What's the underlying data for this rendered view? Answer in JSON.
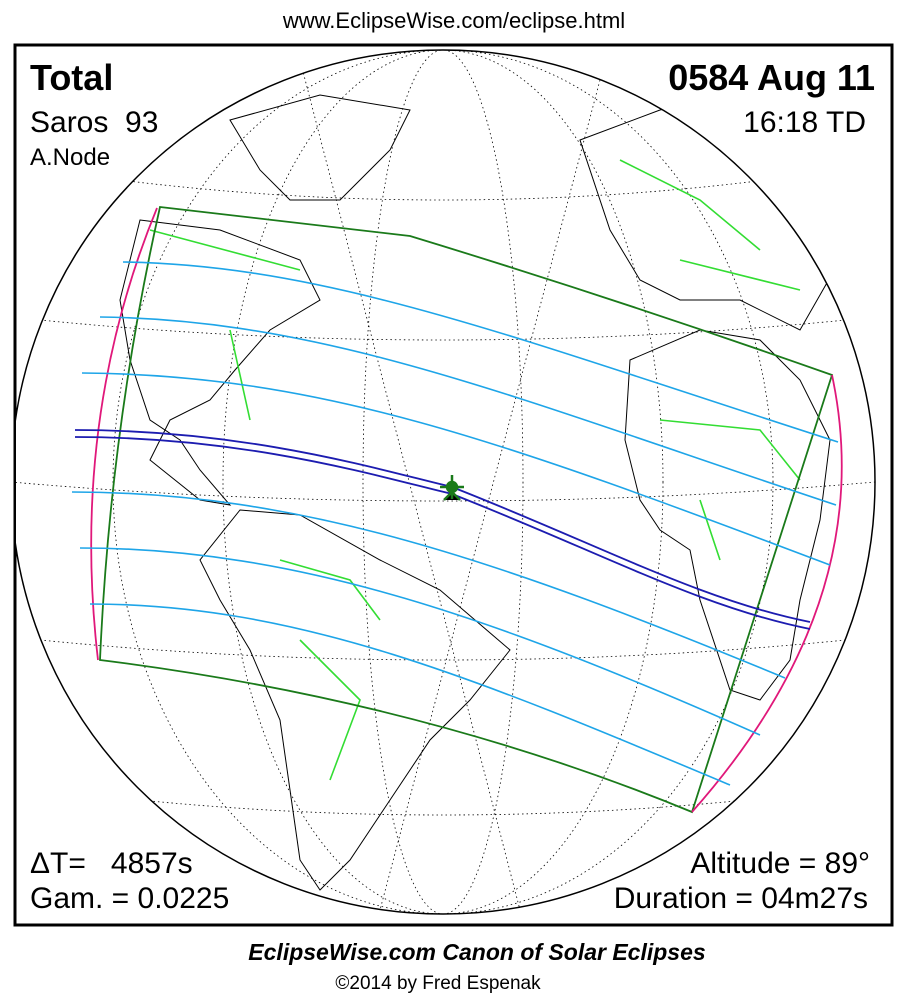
{
  "header": {
    "url": "www.EclipseWise.com/eclipse.html"
  },
  "panel": {
    "eclipse_type": "Total",
    "saros": "Saros  93",
    "node": "A.Node",
    "date": "0584 Aug 11",
    "time": "16:18 TD",
    "delta_t": "ΔT=   4857s",
    "gamma": "Gam. = 0.0225",
    "altitude": "Altitude = 89°",
    "duration": "Duration = 04m27s"
  },
  "footer": {
    "title": "EclipseWise.com Canon of Solar Eclipses",
    "credit": "©2014 by Fred Espenak"
  }
}
